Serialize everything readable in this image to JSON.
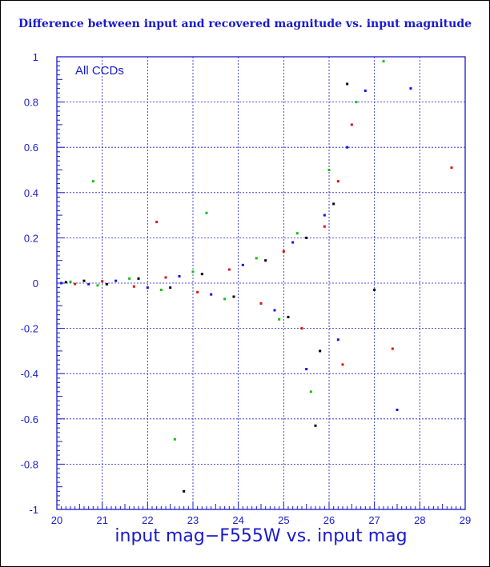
{
  "chart_data": {
    "type": "scatter",
    "title": "Difference between input and recovered magnitude vs. input magnitude",
    "annotation": "All CCDs",
    "xlabel": "input mag−F555W vs. input mag",
    "ylabel": "",
    "xlim": [
      20,
      29
    ],
    "ylim": [
      -1,
      1
    ],
    "x_ticks": [
      "20",
      "21",
      "22",
      "23",
      "24",
      "25",
      "26",
      "27",
      "28",
      "29"
    ],
    "y_ticks": [
      "-1",
      "-0.8",
      "-0.6",
      "-0.4",
      "-0.2",
      "0",
      "0.2",
      "0.4",
      "0.6",
      "0.8",
      "1"
    ],
    "grid": true,
    "colors": {
      "axis": "#1a1acc",
      "grid": "#1a1acc",
      "text": "#1a1acc",
      "series": [
        "#000000",
        "#e01010",
        "#10c010",
        "#1010ee"
      ]
    },
    "series": [
      {
        "color": "#000000",
        "points": [
          [
            20.2,
            0.004
          ],
          [
            20.6,
            0.01
          ],
          [
            21.1,
            -0.005
          ],
          [
            21.8,
            0.02
          ],
          [
            22.5,
            -0.02
          ],
          [
            23.2,
            0.04
          ],
          [
            23.9,
            -0.06
          ],
          [
            24.6,
            0.1
          ],
          [
            25.1,
            -0.15
          ],
          [
            25.5,
            0.2
          ],
          [
            25.8,
            -0.3
          ],
          [
            26.1,
            0.35
          ],
          [
            22.8,
            -0.92
          ],
          [
            25.7,
            -0.63
          ],
          [
            26.4,
            0.88
          ],
          [
            27.0,
            -0.03
          ]
        ]
      },
      {
        "color": "#e01010",
        "points": [
          [
            20.4,
            -0.004
          ],
          [
            21.0,
            0.008
          ],
          [
            21.7,
            -0.015
          ],
          [
            22.4,
            0.025
          ],
          [
            23.1,
            -0.04
          ],
          [
            23.8,
            0.06
          ],
          [
            24.5,
            -0.09
          ],
          [
            25.0,
            0.14
          ],
          [
            25.4,
            -0.2
          ],
          [
            25.9,
            0.25
          ],
          [
            26.2,
            0.45
          ],
          [
            26.5,
            0.7
          ],
          [
            28.7,
            0.51
          ],
          [
            27.4,
            -0.29
          ],
          [
            22.2,
            0.27
          ],
          [
            26.3,
            -0.36
          ]
        ]
      },
      {
        "color": "#10c010",
        "points": [
          [
            20.3,
            0.006
          ],
          [
            20.9,
            -0.01
          ],
          [
            21.6,
            0.02
          ],
          [
            22.3,
            -0.03
          ],
          [
            23.0,
            0.05
          ],
          [
            23.7,
            -0.07
          ],
          [
            24.4,
            0.11
          ],
          [
            24.9,
            -0.16
          ],
          [
            25.3,
            0.22
          ],
          [
            25.6,
            -0.48
          ],
          [
            26.0,
            0.5
          ],
          [
            26.6,
            0.8
          ],
          [
            27.2,
            0.98
          ],
          [
            22.6,
            -0.69
          ],
          [
            20.8,
            0.45
          ],
          [
            23.3,
            0.31
          ]
        ]
      },
      {
        "color": "#1010ee",
        "points": [
          [
            20.1,
            0.0
          ],
          [
            20.7,
            -0.005
          ],
          [
            21.3,
            0.01
          ],
          [
            22.0,
            -0.02
          ],
          [
            22.7,
            0.03
          ],
          [
            23.4,
            -0.05
          ],
          [
            24.1,
            0.08
          ],
          [
            24.8,
            -0.12
          ],
          [
            25.2,
            0.18
          ],
          [
            25.5,
            -0.38
          ],
          [
            25.9,
            0.3
          ],
          [
            26.2,
            -0.25
          ],
          [
            26.4,
            0.6
          ],
          [
            26.8,
            0.85
          ],
          [
            27.8,
            0.86
          ],
          [
            27.5,
            -0.56
          ]
        ]
      }
    ]
  }
}
